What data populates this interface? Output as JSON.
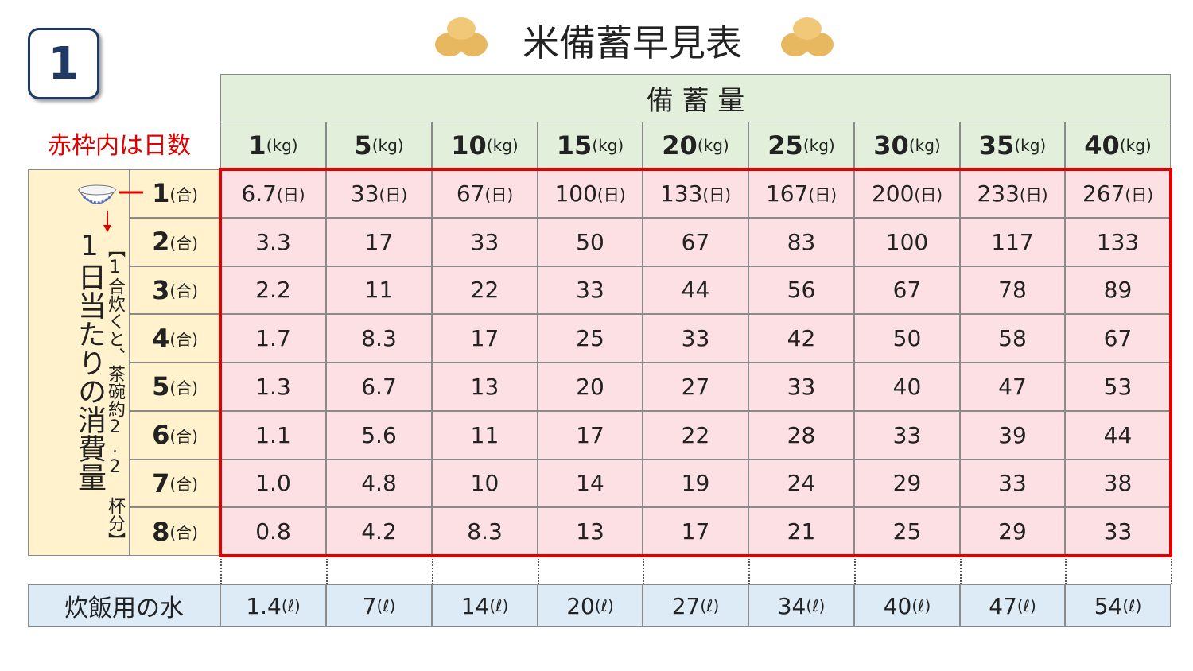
{
  "badge": "1",
  "title": "米備蓄早見表",
  "note": "赤枠内は日数",
  "table": {
    "header": "備 蓄 量",
    "columns": [
      {
        "amount": "1",
        "unit": "(kg)"
      },
      {
        "amount": "5",
        "unit": "(kg)"
      },
      {
        "amount": "10",
        "unit": "(kg)"
      },
      {
        "amount": "15",
        "unit": "(kg)"
      },
      {
        "amount": "20",
        "unit": "(kg)"
      },
      {
        "amount": "25",
        "unit": "(kg)"
      },
      {
        "amount": "30",
        "unit": "(kg)"
      },
      {
        "amount": "35",
        "unit": "(kg)"
      },
      {
        "amount": "40",
        "unit": "(kg)"
      }
    ],
    "row_group_label": "1日当たりの消費量",
    "row_group_note": "【1合炊くと、茶碗約2.2 杯分】",
    "day_unit": "(日)",
    "rows": [
      {
        "label": "1",
        "unit": "(合)",
        "cells": [
          "6.7",
          "33",
          "67",
          "100",
          "133",
          "167",
          "200",
          "233",
          "267"
        ]
      },
      {
        "label": "2",
        "unit": "(合)",
        "cells": [
          "3.3",
          "17",
          "33",
          "50",
          "67",
          "83",
          "100",
          "117",
          "133"
        ]
      },
      {
        "label": "3",
        "unit": "(合)",
        "cells": [
          "2.2",
          "11",
          "22",
          "33",
          "44",
          "56",
          "67",
          "78",
          "89"
        ]
      },
      {
        "label": "4",
        "unit": "(合)",
        "cells": [
          "1.7",
          "8.3",
          "17",
          "25",
          "33",
          "42",
          "50",
          "58",
          "67"
        ]
      },
      {
        "label": "5",
        "unit": "(合)",
        "cells": [
          "1.3",
          "6.7",
          "13",
          "20",
          "27",
          "33",
          "40",
          "47",
          "53"
        ]
      },
      {
        "label": "6",
        "unit": "(合)",
        "cells": [
          "1.1",
          "5.6",
          "11",
          "17",
          "22",
          "28",
          "33",
          "39",
          "44"
        ]
      },
      {
        "label": "7",
        "unit": "(合)",
        "cells": [
          "1.0",
          "4.8",
          "10",
          "14",
          "19",
          "24",
          "29",
          "33",
          "38"
        ]
      },
      {
        "label": "8",
        "unit": "(合)",
        "cells": [
          "0.8",
          "4.2",
          "8.3",
          "13",
          "17",
          "21",
          "25",
          "29",
          "33"
        ]
      }
    ]
  },
  "water": {
    "label": "炊飯用の水",
    "cells": [
      {
        "amount": "1.4",
        "unit": "(ℓ)"
      },
      {
        "amount": "7",
        "unit": "(ℓ)"
      },
      {
        "amount": "14",
        "unit": "(ℓ)"
      },
      {
        "amount": "20",
        "unit": "(ℓ)"
      },
      {
        "amount": "27",
        "unit": "(ℓ)"
      },
      {
        "amount": "34",
        "unit": "(ℓ)"
      },
      {
        "amount": "40",
        "unit": "(ℓ)"
      },
      {
        "amount": "47",
        "unit": "(ℓ)"
      },
      {
        "amount": "54",
        "unit": "(ℓ)"
      }
    ]
  }
}
